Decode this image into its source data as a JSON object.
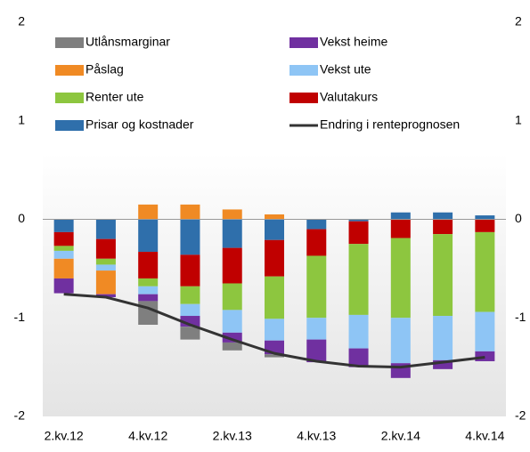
{
  "chart_data": {
    "type": "bar",
    "categories": [
      "2.kv.12",
      null,
      "4.kv.12",
      null,
      "2.kv.13",
      null,
      "4.kv.13",
      null,
      "2.kv.14",
      null,
      "4.kv.14"
    ],
    "series": [
      {
        "name": "Utlånsmarginar",
        "color": "#7f7f7f",
        "values": [
          0,
          0,
          -0.24,
          -0.13,
          -0.08,
          -0.03,
          0,
          0,
          0,
          0,
          0
        ]
      },
      {
        "name": "Påslag",
        "color": "#f08a24",
        "values": [
          -0.2,
          -0.24,
          0.15,
          0.15,
          0.1,
          0.05,
          0,
          0,
          0,
          0,
          0
        ]
      },
      {
        "name": "Renter ute",
        "color": "#8dc63f",
        "values": [
          -0.05,
          -0.06,
          -0.08,
          -0.18,
          -0.27,
          -0.43,
          -0.63,
          -0.72,
          -0.81,
          -0.83,
          -0.81
        ]
      },
      {
        "name": "Prisar og kostnader",
        "color": "#2f6fab",
        "values": [
          -0.13,
          -0.2,
          -0.33,
          -0.36,
          -0.29,
          -0.21,
          -0.1,
          -0.02,
          0.07,
          0.07,
          0.04
        ]
      },
      {
        "name": "Vekst heime",
        "color": "#7030a0",
        "values": [
          -0.15,
          -0.03,
          -0.07,
          -0.11,
          -0.1,
          -0.14,
          -0.23,
          -0.19,
          -0.15,
          -0.09,
          -0.1
        ]
      },
      {
        "name": "Vekst ute",
        "color": "#8ec5f5",
        "values": [
          -0.08,
          -0.06,
          -0.08,
          -0.12,
          -0.23,
          -0.22,
          -0.22,
          -0.34,
          -0.46,
          -0.45,
          -0.4
        ]
      },
      {
        "name": "Valutakurs",
        "color": "#c00000",
        "values": [
          -0.14,
          -0.2,
          -0.27,
          -0.32,
          -0.36,
          -0.37,
          -0.27,
          -0.23,
          -0.19,
          -0.15,
          -0.13
        ]
      },
      {
        "name": "Endring i renteprognosen",
        "color": "#333333",
        "type": "line",
        "values": [
          -0.76,
          -0.79,
          -0.9,
          -1.07,
          -1.22,
          -1.36,
          -1.44,
          -1.49,
          -1.5,
          -1.45,
          -1.4
        ]
      }
    ],
    "ylim": [
      -2,
      2
    ],
    "yticks": [
      -2,
      -1,
      0,
      1,
      2
    ],
    "y2lim": [
      -2,
      2
    ],
    "y2ticks": [
      -2,
      -1,
      0,
      1,
      2
    ]
  }
}
